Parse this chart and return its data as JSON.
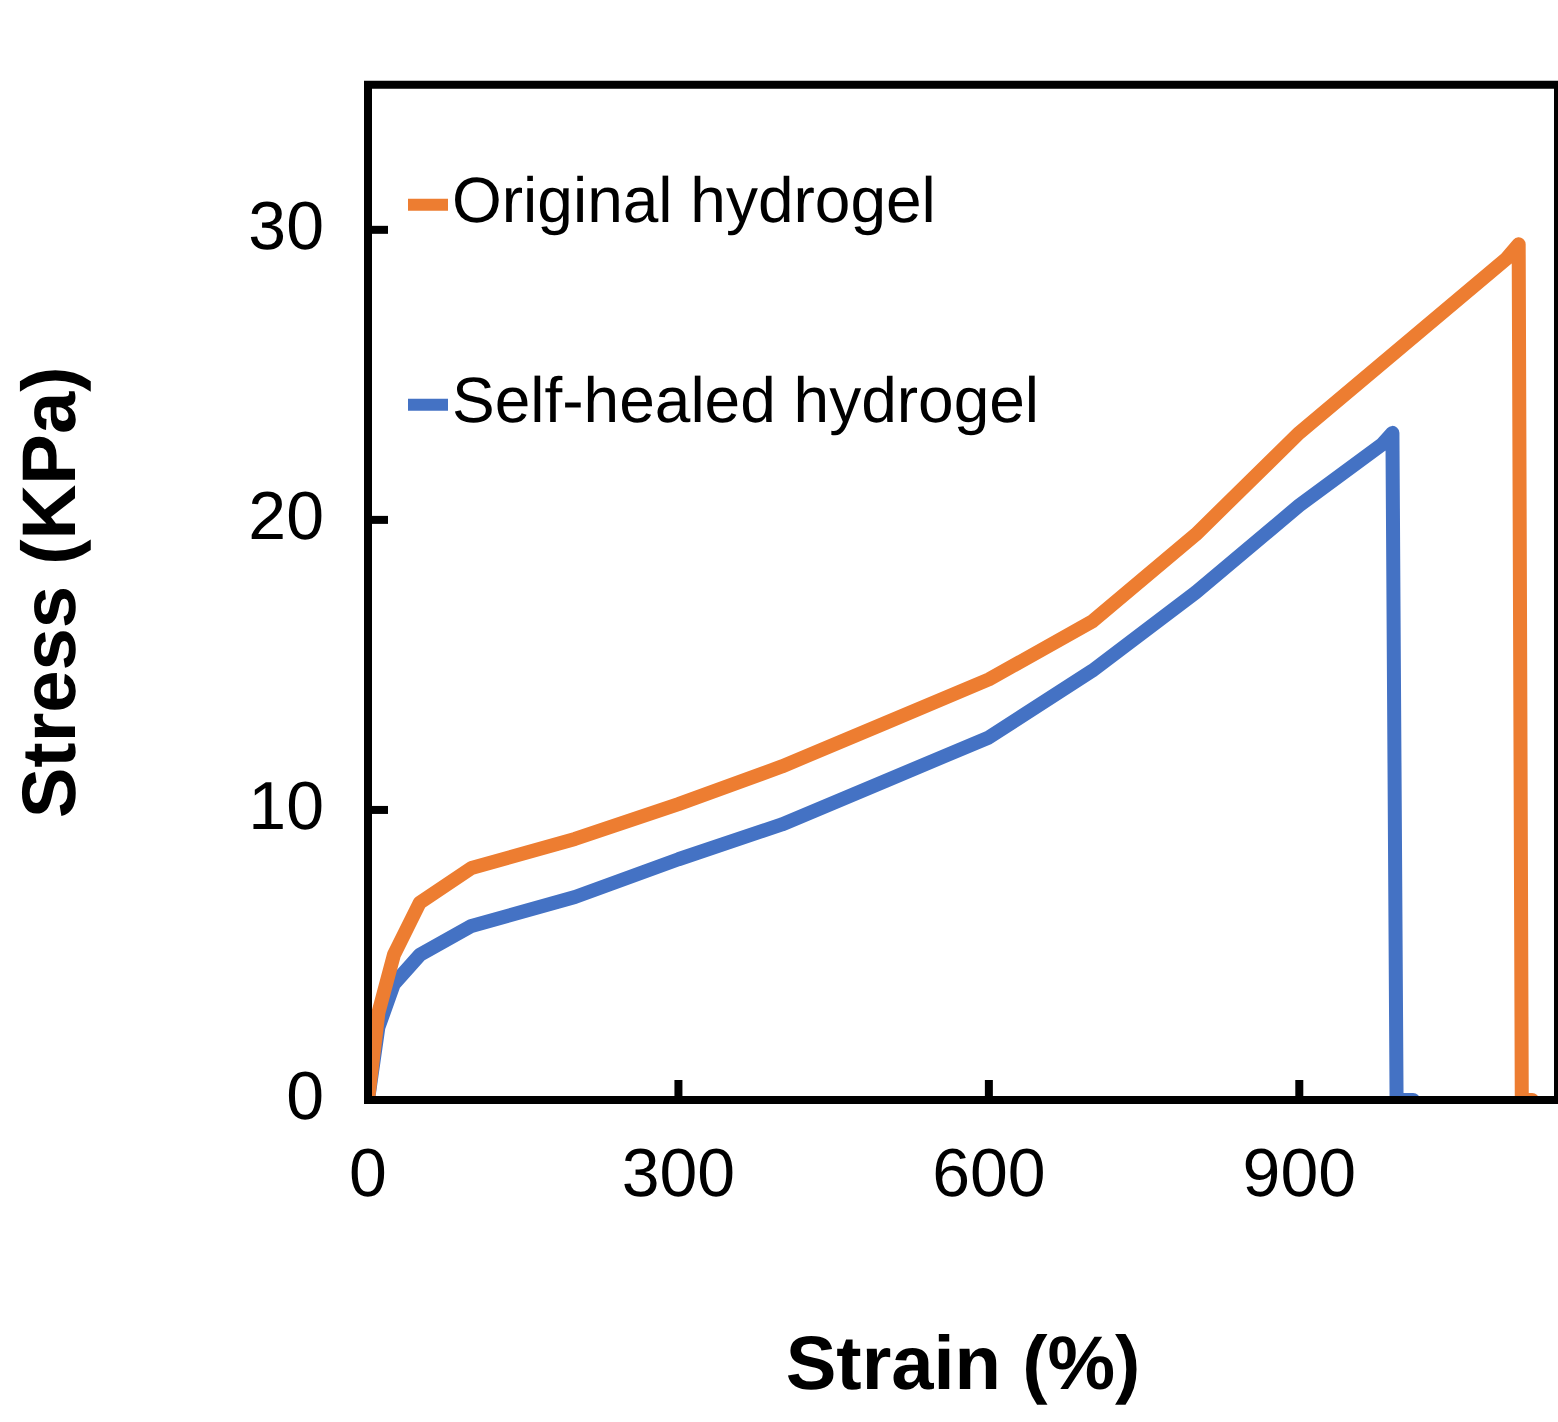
{
  "chart_data": {
    "type": "line",
    "xlabel": "Strain (%)",
    "ylabel": "Stress (KPa)",
    "xlim": [
      0,
      1150
    ],
    "ylim": [
      0,
      35
    ],
    "xticks": [
      0,
      300,
      600,
      900
    ],
    "yticks": [
      0,
      10,
      20,
      30
    ],
    "grid": false,
    "legend": "top left",
    "marker": "none",
    "line_style": "solid",
    "series": [
      {
        "name": "Original hydrogel",
        "color": "#ed7d31",
        "x": [
          0,
          10,
          25,
          50,
          100,
          200,
          300,
          400,
          500,
          600,
          700,
          800,
          900,
          1000,
          1100,
          1112,
          1115,
          1125
        ],
        "values": [
          0,
          3,
          5,
          6.8,
          8,
          9,
          10.2,
          11.5,
          13,
          14.5,
          16.5,
          19.5,
          23,
          26,
          29,
          29.5,
          0,
          0
        ]
      },
      {
        "name": "Self-healed hydrogel",
        "color": "#4472c4",
        "x": [
          0,
          10,
          25,
          50,
          100,
          200,
          300,
          400,
          500,
          600,
          700,
          800,
          900,
          980,
          990,
          994,
          1010
        ],
        "values": [
          0,
          2.5,
          4,
          5,
          6,
          7,
          8.3,
          9.5,
          11,
          12.5,
          14.8,
          17.5,
          20.5,
          22.6,
          23,
          0,
          0
        ]
      }
    ]
  }
}
